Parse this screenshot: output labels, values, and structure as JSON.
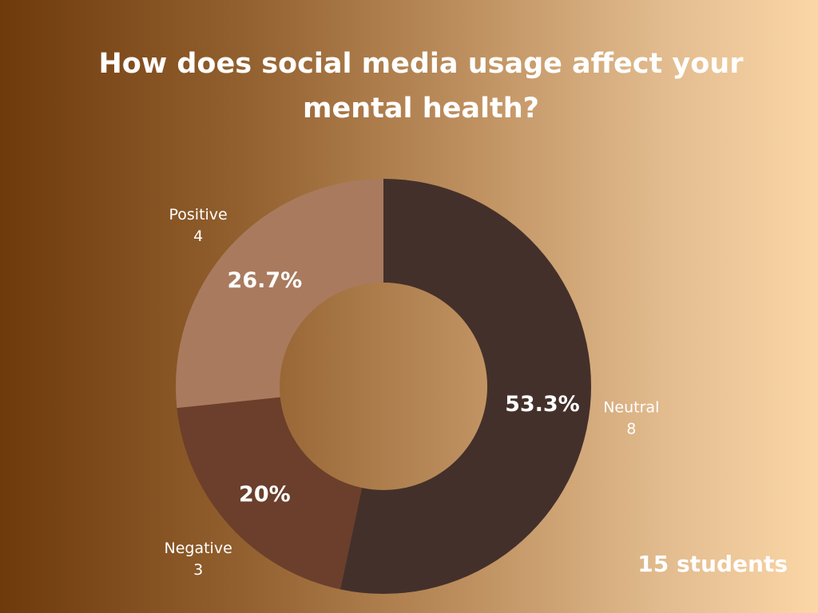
{
  "chart_data": {
    "type": "pie",
    "variant": "donut",
    "title": "How does social media usage affect your mental health?",
    "total_label": "15 students",
    "slices": [
      {
        "label": "Neutral",
        "value": 8,
        "percent_label": "53.3%",
        "color": "#44302b"
      },
      {
        "label": "Negative",
        "value": 3,
        "percent_label": "20%",
        "color": "#6b3f2b"
      },
      {
        "label": "Positive",
        "value": 4,
        "percent_label": "26.7%",
        "color": "#a97a5e"
      }
    ]
  }
}
